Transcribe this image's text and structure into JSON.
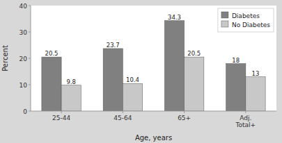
{
  "chart_data": {
    "type": "bar",
    "categories": [
      "25-44",
      "45-64",
      "65+",
      "Adj.\nTotal+"
    ],
    "series": [
      {
        "name": "Diabetes",
        "color": "#808080",
        "values": [
          20.5,
          23.7,
          34.3,
          18
        ]
      },
      {
        "name": "No Diabetes",
        "color": "#c8c8c8",
        "values": [
          9.8,
          10.4,
          20.5,
          13
        ]
      }
    ],
    "xlabel": "Age, years",
    "ylabel": "Percent",
    "ylim": [
      0,
      40
    ],
    "yticks": [
      0,
      10,
      20,
      30,
      40
    ],
    "grid": false,
    "legend": "upper right",
    "data_labels": true
  }
}
